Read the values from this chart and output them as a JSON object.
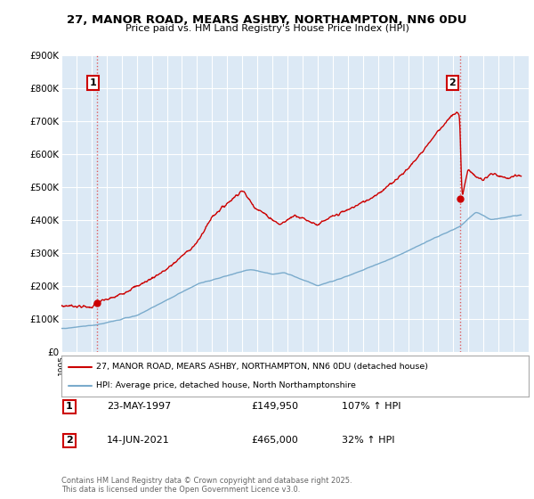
{
  "title": "27, MANOR ROAD, MEARS ASHBY, NORTHAMPTON, NN6 0DU",
  "subtitle": "Price paid vs. HM Land Registry's House Price Index (HPI)",
  "background_color": "#ffffff",
  "plot_bg_color": "#dce9f5",
  "grid_color": "#ffffff",
  "ylim": [
    0,
    900000
  ],
  "yticks": [
    0,
    100000,
    200000,
    300000,
    400000,
    500000,
    600000,
    700000,
    800000,
    900000
  ],
  "ytick_labels": [
    "£0",
    "£100K",
    "£200K",
    "£300K",
    "£400K",
    "£500K",
    "£600K",
    "£700K",
    "£800K",
    "£900K"
  ],
  "sale1_date_x": 1997.39,
  "sale1_price": 149950,
  "sale1_label": "1",
  "sale2_date_x": 2021.45,
  "sale2_price": 465000,
  "sale2_label": "2",
  "vline1_x": 1997.39,
  "vline2_x": 2021.45,
  "vline_color": "#dd4444",
  "red_line_color": "#cc0000",
  "blue_line_color": "#7aabcc",
  "legend_line1": "27, MANOR ROAD, MEARS ASHBY, NORTHAMPTON, NN6 0DU (detached house)",
  "legend_line2": "HPI: Average price, detached house, North Northamptonshire",
  "table_entries": [
    {
      "num": "1",
      "date": "23-MAY-1997",
      "price": "£149,950",
      "hpi": "107% ↑ HPI"
    },
    {
      "num": "2",
      "date": "14-JUN-2021",
      "price": "£465,000",
      "hpi": "32% ↑ HPI"
    }
  ],
  "footer": "Contains HM Land Registry data © Crown copyright and database right 2025.\nThis data is licensed under the Open Government Licence v3.0.",
  "xmin": 1995,
  "xmax": 2026
}
